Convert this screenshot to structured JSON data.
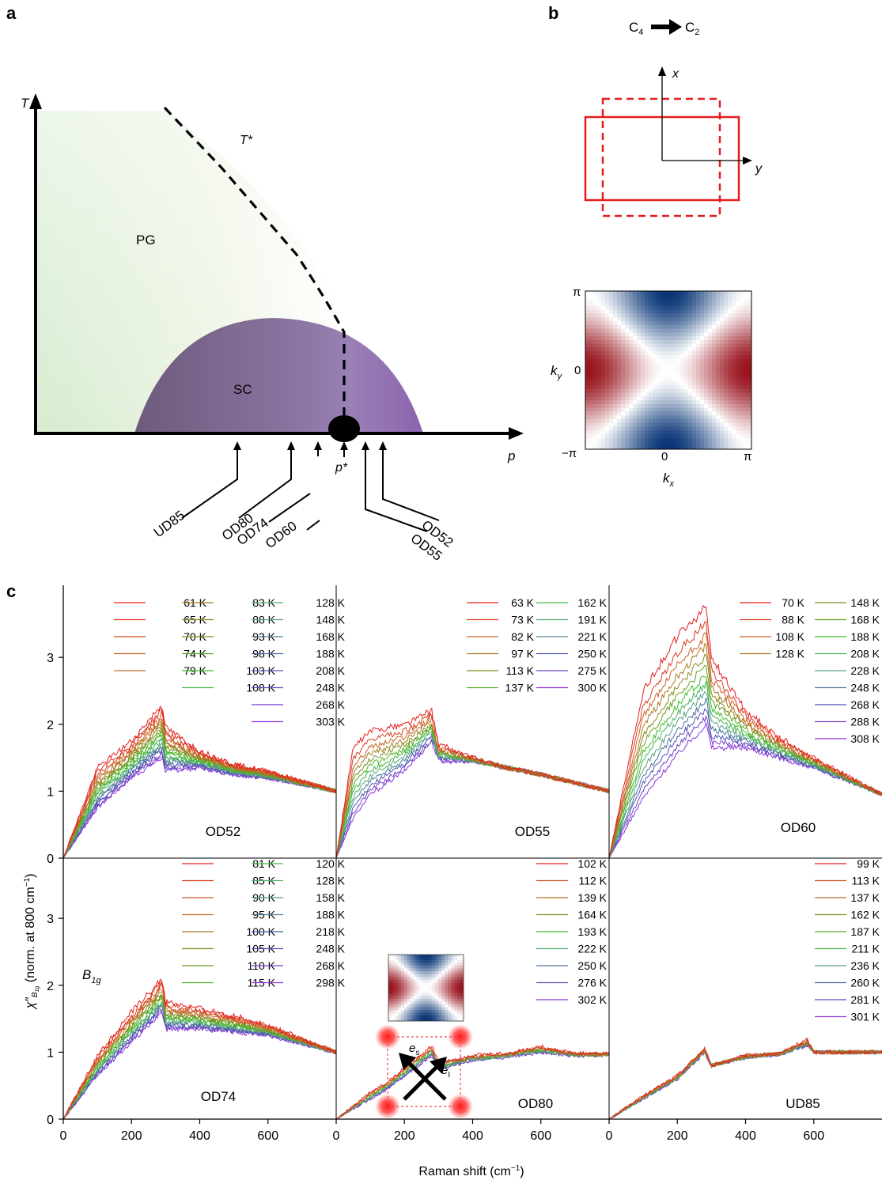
{
  "panel_a": {
    "label": "a",
    "t_axis": "T",
    "p_axis": "p",
    "tstar": "T*",
    "pg": "PG",
    "sc": "SC",
    "pstar": "p*",
    "samples": [
      {
        "name": "UD85"
      },
      {
        "name": "OD80"
      },
      {
        "name": "OD74"
      },
      {
        "name": "OD60"
      },
      {
        "name": "OD55"
      },
      {
        "name": "OD52"
      }
    ]
  },
  "panel_b": {
    "label": "b",
    "c4": "C",
    "c4_sub": "4",
    "c2": "C",
    "c2_sub": "2",
    "axis_x": "x",
    "axis_y": "y",
    "ky": "k",
    "ky_sub": "y",
    "kx": "k",
    "kx_sub": "x",
    "pi_top": "π",
    "zero_y": "0",
    "neg_pi": "−π",
    "zero_x": "0",
    "pi_right": "π"
  },
  "panel_c": {
    "label": "c",
    "xlabel": "Raman shift (cm",
    "xlabel_sup": "−1",
    "xlabel_end": ")",
    "ylabel_chi": "χ″",
    "ylabel_sub": "B",
    "ylabel_subsub": "1g",
    "ylabel_rest": " (norm. at 800 cm",
    "ylabel_sup": "−1",
    "ylabel_end": ")",
    "symmetry": "B",
    "symmetry_sub": "1g",
    "inset_es": "e",
    "inset_es_sub": "s",
    "inset_ei": "e",
    "inset_ei_sub": "I",
    "xticks": [
      "0",
      "200",
      "400",
      "600"
    ],
    "yticks": [
      "0",
      "1",
      "2",
      "3"
    ]
  },
  "chart_data": {
    "type": "line",
    "xlabel": "Raman shift (cm−1)",
    "ylabel": "χ″B1g (norm. at 800 cm−1)",
    "xlim": [
      0,
      800
    ],
    "ylim": [
      0,
      3.9
    ],
    "panels": [
      {
        "sample": "OD52",
        "temperatures": [
          "61 K",
          "65 K",
          "70 K",
          "74 K",
          "79 K",
          "83 K",
          "88 K",
          "93 K",
          "98 K",
          "103 K",
          "108 K",
          "128 K",
          "148 K",
          "168 K",
          "188 K",
          "208 K",
          "248 K",
          "268 K",
          "303 K"
        ],
        "profile": {
          "x": [
            0,
            100,
            200,
            290,
            300,
            400,
            500,
            600,
            800
          ],
          "y_low_T": [
            0,
            1.35,
            1.75,
            2.3,
            1.95,
            1.6,
            1.4,
            1.3,
            1.0
          ],
          "y_high_T": [
            0,
            0.75,
            1.2,
            1.5,
            1.3,
            1.35,
            1.25,
            1.2,
            1.0
          ]
        }
      },
      {
        "sample": "OD55",
        "temperatures": [
          "63 K",
          "73 K",
          "82 K",
          "97 K",
          "113 K",
          "137 K",
          "162 K",
          "191 K",
          "221 K",
          "250 K",
          "275 K",
          "300 K"
        ],
        "profile": {
          "x": [
            0,
            50,
            100,
            200,
            280,
            300,
            400,
            500,
            600,
            800
          ],
          "y_low_T": [
            0,
            1.65,
            1.9,
            2.0,
            2.2,
            1.7,
            1.5,
            1.35,
            1.25,
            1.0
          ],
          "y_high_T": [
            0,
            0.6,
            0.95,
            1.3,
            1.75,
            1.45,
            1.45,
            1.35,
            1.25,
            1.0
          ]
        }
      },
      {
        "sample": "OD60",
        "temperatures": [
          "70 K",
          "88 K",
          "108 K",
          "128 K",
          "148 K",
          "168 K",
          "188 K",
          "208 K",
          "228 K",
          "248 K",
          "268 K",
          "288 K",
          "308 K"
        ],
        "profile": {
          "x": [
            0,
            100,
            200,
            285,
            300,
            400,
            500,
            600,
            800
          ],
          "y_low_T": [
            0,
            2.5,
            3.3,
            3.75,
            3.0,
            2.2,
            1.8,
            1.5,
            0.95
          ],
          "y_high_T": [
            0,
            0.9,
            1.55,
            2.0,
            1.65,
            1.65,
            1.5,
            1.35,
            0.95
          ]
        }
      },
      {
        "sample": "OD74",
        "temperatures": [
          "81 K",
          "85 K",
          "90 K",
          "95 K",
          "100 K",
          "105 K",
          "110 K",
          "115 K",
          "120 K",
          "128 K",
          "158 K",
          "188 K",
          "218 K",
          "248 K",
          "268 K",
          "298 K"
        ],
        "profile": {
          "x": [
            0,
            100,
            200,
            290,
            300,
            400,
            500,
            600,
            800
          ],
          "y_low_T": [
            0,
            0.95,
            1.6,
            2.1,
            1.75,
            1.65,
            1.55,
            1.4,
            1.0
          ],
          "y_high_T": [
            0,
            0.65,
            1.15,
            1.6,
            1.35,
            1.35,
            1.3,
            1.25,
            1.0
          ]
        }
      },
      {
        "sample": "OD80",
        "temperatures": [
          "102 K",
          "112 K",
          "139 K",
          "164 K",
          "193 K",
          "222 K",
          "250 K",
          "276 K",
          "302 K"
        ],
        "profile": {
          "x": [
            0,
            100,
            150,
            280,
            300,
            400,
            500,
            600,
            700,
            800
          ],
          "y_low_T": [
            0,
            0.4,
            0.55,
            1.1,
            0.85,
            0.95,
            0.98,
            1.08,
            0.98,
            0.98
          ],
          "y_high_T": [
            0,
            0.3,
            0.45,
            0.95,
            0.75,
            0.88,
            0.93,
            1.0,
            0.95,
            0.95
          ]
        }
      },
      {
        "sample": "UD85",
        "temperatures": [
          "99 K",
          "113 K",
          "137 K",
          "162 K",
          "187 K",
          "211 K",
          "236 K",
          "260 K",
          "281 K",
          "301 K"
        ],
        "profile": {
          "x": [
            0,
            100,
            200,
            280,
            300,
            400,
            500,
            580,
            600,
            800
          ],
          "y_low_T": [
            0,
            0.35,
            0.65,
            1.05,
            0.8,
            0.95,
            0.98,
            1.18,
            1.0,
            1.0
          ],
          "y_high_T": [
            0,
            0.3,
            0.6,
            1.0,
            0.8,
            0.92,
            0.97,
            1.1,
            1.0,
            1.0
          ]
        }
      }
    ]
  }
}
